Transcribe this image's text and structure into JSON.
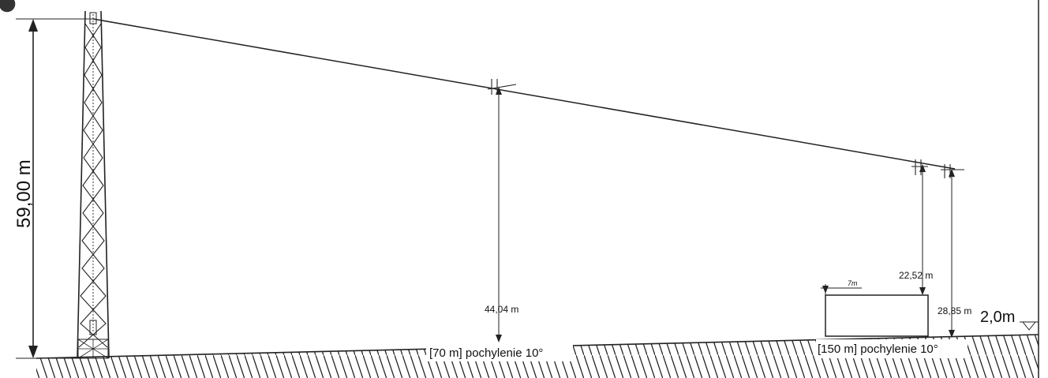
{
  "diagram": {
    "tower_height_label": "59,00 m",
    "clearance_70_label": "44,04 m",
    "clearance_building_label": "22,52 m",
    "clearance_150_label": "28,85 m",
    "building_width_label": "7m",
    "level_label": "2,0m",
    "ground_label_70": "[70 m]  pochylenie 10°",
    "ground_label_150": "[150 m]  pochylenie 10°"
  }
}
